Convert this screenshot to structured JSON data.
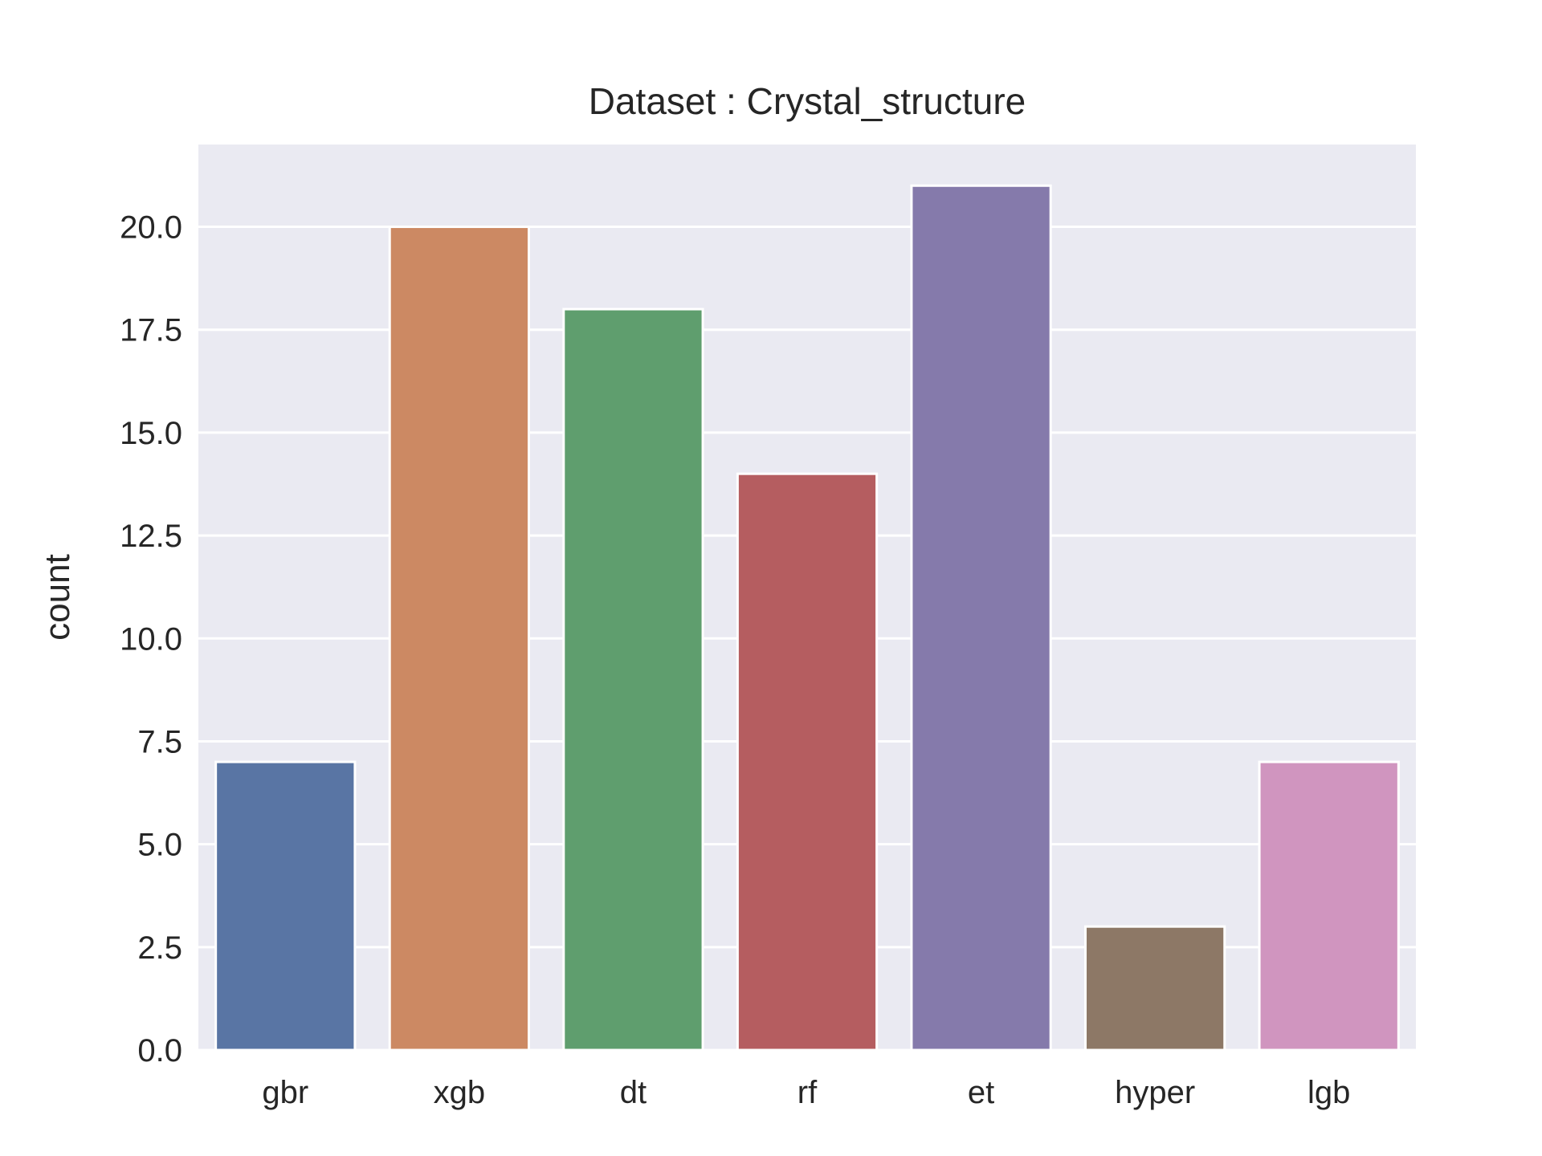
{
  "chart_data": {
    "type": "bar",
    "title": "Dataset : Crystal_structure",
    "xlabel": "",
    "ylabel": "count",
    "categories": [
      "gbr",
      "xgb",
      "dt",
      "rf",
      "et",
      "hyper",
      "lgb"
    ],
    "values": [
      7,
      20,
      18,
      14,
      21,
      3,
      7
    ],
    "colors": [
      "#5975a4",
      "#cc8963",
      "#5f9e6e",
      "#b55d60",
      "#857aab",
      "#8d7866",
      "#d095bf"
    ],
    "ylim": [
      0,
      22
    ],
    "yticks": [
      0.0,
      2.5,
      5.0,
      7.5,
      10.0,
      12.5,
      15.0,
      17.5,
      20.0
    ],
    "ytick_labels": [
      "0.0",
      "2.5",
      "5.0",
      "7.5",
      "10.0",
      "12.5",
      "15.0",
      "17.5",
      "20.0"
    ],
    "grid": true,
    "background_color": "#eaeaf2",
    "grid_color": "#ffffff"
  }
}
